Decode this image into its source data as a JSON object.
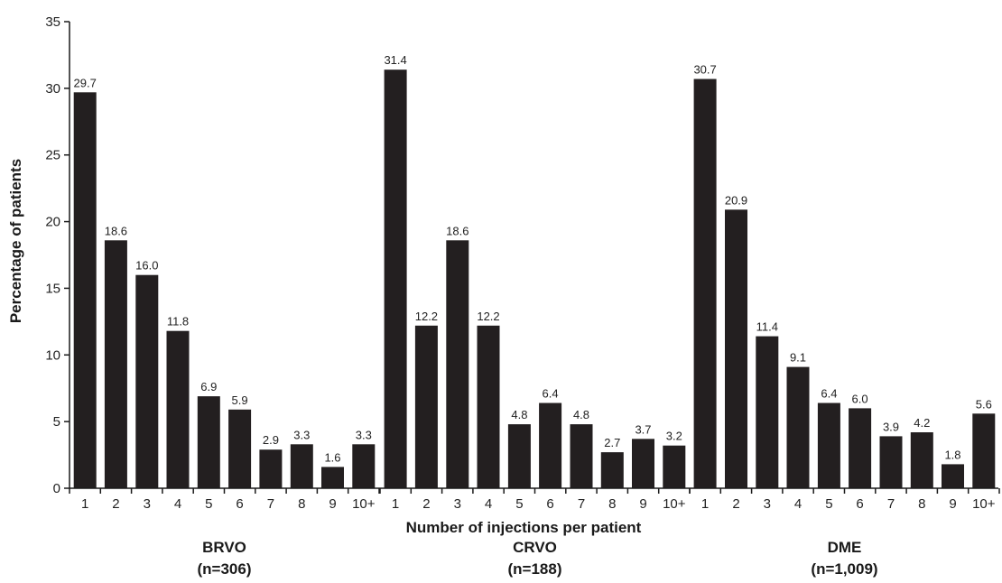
{
  "chart_data": {
    "type": "bar",
    "title": "",
    "xlabel": "Number of injections per patient",
    "ylabel": "Percentage of patients",
    "ylim": [
      0,
      35
    ],
    "yticks": [
      "0",
      "5",
      "10",
      "15",
      "20",
      "25",
      "30",
      "35"
    ],
    "grid": false,
    "legend": "none",
    "bar_color": "#231f20",
    "groups": [
      {
        "name": "BRVO",
        "n_label": "(n=306)",
        "categories": [
          "1",
          "2",
          "3",
          "4",
          "5",
          "6",
          "7",
          "8",
          "9",
          "10+"
        ],
        "values": [
          29.7,
          18.6,
          16.0,
          11.8,
          6.9,
          5.9,
          2.9,
          3.3,
          1.6,
          3.3
        ],
        "value_labels": [
          "29.7",
          "18.6",
          "16.0",
          "11.8",
          "6.9",
          "5.9",
          "2.9",
          "3.3",
          "1.6",
          "3.3"
        ]
      },
      {
        "name": "CRVO",
        "n_label": "(n=188)",
        "categories": [
          "1",
          "2",
          "3",
          "4",
          "5",
          "6",
          "7",
          "8",
          "9",
          "10+"
        ],
        "values": [
          31.4,
          12.2,
          18.6,
          12.2,
          4.8,
          6.4,
          4.8,
          2.7,
          3.7,
          3.2
        ],
        "value_labels": [
          "31.4",
          "12.2",
          "18.6",
          "12.2",
          "4.8",
          "6.4",
          "4.8",
          "2.7",
          "3.7",
          "3.2"
        ]
      },
      {
        "name": "DME",
        "n_label": "(n=1,009)",
        "categories": [
          "1",
          "2",
          "3",
          "4",
          "5",
          "6",
          "7",
          "8",
          "9",
          "10+"
        ],
        "values": [
          30.7,
          20.9,
          11.4,
          9.1,
          6.4,
          6.0,
          3.9,
          4.2,
          1.8,
          5.6
        ],
        "value_labels": [
          "30.7",
          "20.9",
          "11.4",
          "9.1",
          "6.4",
          "6.0",
          "3.9",
          "4.2",
          "1.8",
          "5.6"
        ]
      }
    ]
  }
}
